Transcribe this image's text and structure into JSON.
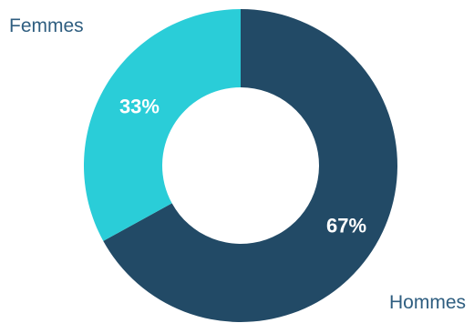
{
  "chart_data": {
    "type": "pie",
    "donut": true,
    "categories": [
      "Hommes",
      "Femmes"
    ],
    "values": [
      67,
      33
    ],
    "data_labels": [
      "67%",
      "33%"
    ],
    "colors": [
      "#224a66",
      "#2acdd8"
    ],
    "label_color": "#2f5e80",
    "data_label_color": "#ffffff",
    "start_angle_deg": 0,
    "direction": "clockwise",
    "legend": "none"
  }
}
